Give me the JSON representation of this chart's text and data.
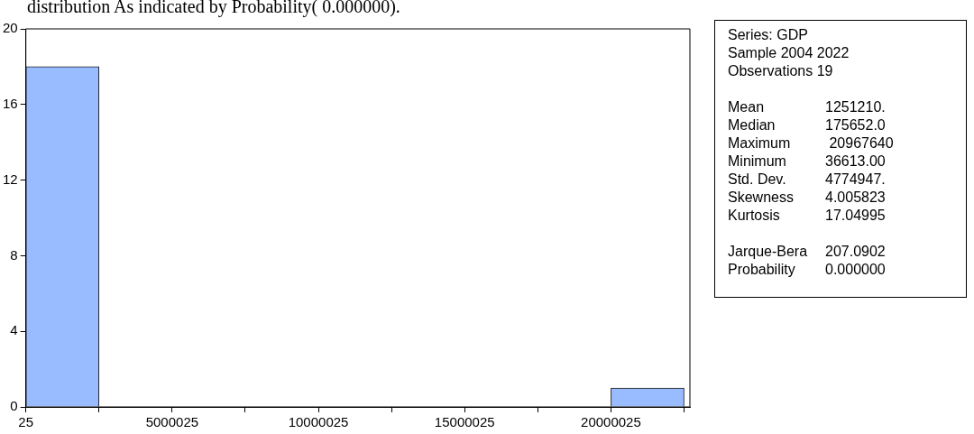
{
  "chart_data": [
    {
      "type": "histogram",
      "title": "distribution As indicated by Probability( 0.000000).",
      "bins": [
        25,
        2500025,
        5000025,
        7500025,
        10000025,
        12500025,
        15000025,
        17500025,
        20000025,
        22500025
      ],
      "values": [
        18,
        0,
        0,
        0,
        0,
        0,
        0,
        0,
        1
      ],
      "color": "#99bbff",
      "xlim": [
        25,
        22700025
      ],
      "xticks": [
        25,
        {
          "value": 2500025,
          "label": null
        },
        5000025,
        {
          "value": 7500025,
          "label": null
        },
        10000025,
        {
          "value": 12500025,
          "label": null
        },
        15000025,
        {
          "value": 17500025,
          "label": null
        },
        20000025,
        {
          "value": 22500025,
          "label": null
        }
      ],
      "ylim": [
        0,
        20
      ],
      "yticks": [
        0,
        4,
        8,
        12,
        16,
        20
      ],
      "grid": false,
      "legend": false
    },
    {
      "type": "other",
      "annotations": [
        "Series: GDP",
        "Sample 2004 2022",
        "Observations 19"
      ]
    },
    {
      "type": "other",
      "annotations": [
        "Mean\t1251210.",
        "Median\t175652.0",
        "Maximum\t 20967640",
        "Minimum\t36613.00",
        "Std. Dev.\t4774947.",
        "Skewness\t4.005823",
        "Kurtosis\t17.04995"
      ]
    },
    {
      "type": "other",
      "annotations": [
        "Jarque-Bera\t207.0902",
        "Probability\t0.000000"
      ]
    }
  ]
}
